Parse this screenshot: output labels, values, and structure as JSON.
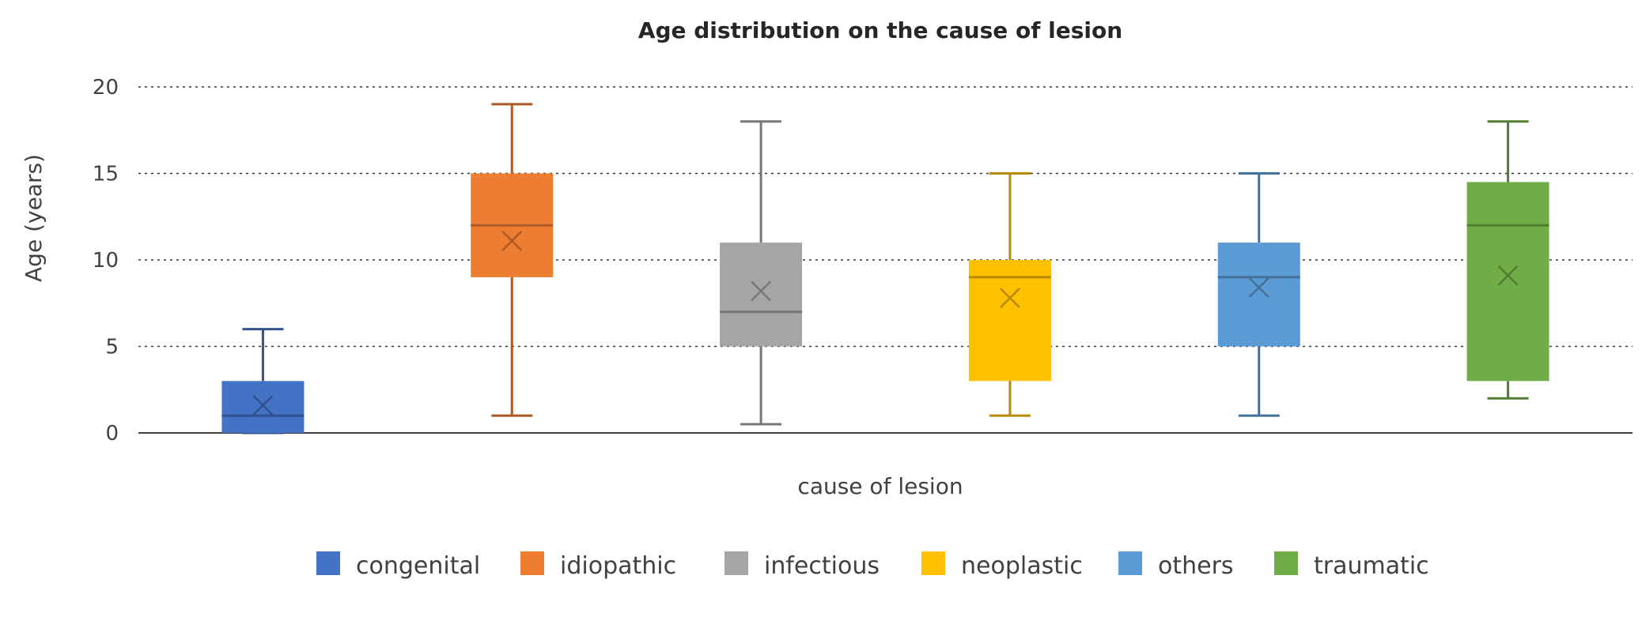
{
  "chart_data": {
    "type": "boxplot",
    "title": "Age distribution on the cause of lesion",
    "xlabel": "cause of lesion",
    "ylabel": "Age (years)",
    "ylim": [
      0,
      20
    ],
    "yticks": [
      0,
      5,
      10,
      15,
      20
    ],
    "grid": "horizontal dotted",
    "legend_position": "bottom",
    "series": [
      {
        "name": "congenital",
        "color": "#4472c4",
        "min": 0,
        "q1": 0,
        "median": 1,
        "q3": 3,
        "max": 6,
        "mean": 1.6
      },
      {
        "name": "idiopathic",
        "color": "#ed7d31",
        "min": 1,
        "q1": 9,
        "median": 12,
        "q3": 15,
        "max": 19,
        "mean": 11.1
      },
      {
        "name": "infectious",
        "color": "#a5a5a5",
        "min": 0.5,
        "q1": 5,
        "median": 7,
        "q3": 11,
        "max": 18,
        "mean": 8.2
      },
      {
        "name": "neoplastic",
        "color": "#ffc000",
        "min": 1,
        "q1": 3,
        "median": 9,
        "q3": 10,
        "max": 15,
        "mean": 7.8
      },
      {
        "name": "others",
        "color": "#5b9bd5",
        "min": 1,
        "q1": 5,
        "median": 9,
        "q3": 11,
        "max": 15,
        "mean": 8.4
      },
      {
        "name": "traumatic",
        "color": "#70ad47",
        "min": 2,
        "q1": 3,
        "median": 12,
        "q3": 14.5,
        "max": 18,
        "mean": 9.1
      }
    ]
  }
}
